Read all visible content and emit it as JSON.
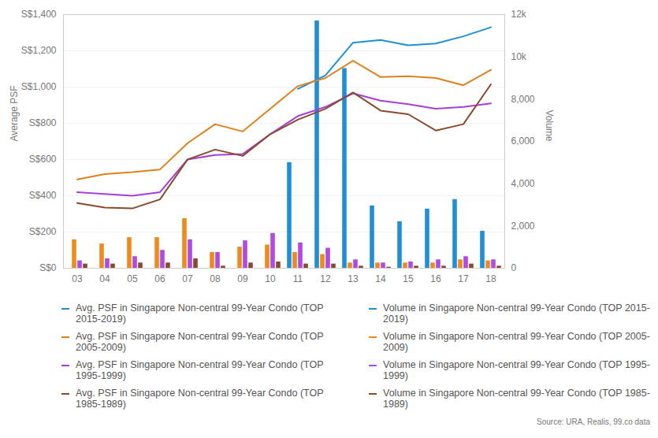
{
  "chart_data": {
    "type": "bar",
    "ylabel": "Average PSF",
    "y2label": "Volume",
    "caption": "Source: URA, Realis, 99.co data",
    "categories": [
      "03",
      "04",
      "05",
      "06",
      "07",
      "08",
      "09",
      "10",
      "11",
      "12",
      "13",
      "14",
      "15",
      "16",
      "17",
      "18"
    ],
    "ylim": [
      0,
      1400
    ],
    "yticks": [
      {
        "value": 0,
        "label": "S$0"
      },
      {
        "value": 200,
        "label": "S$200"
      },
      {
        "value": 400,
        "label": "S$400"
      },
      {
        "value": 600,
        "label": "S$600"
      },
      {
        "value": 800,
        "label": "S$800"
      },
      {
        "value": 1000,
        "label": "S$1,000"
      },
      {
        "value": 1200,
        "label": "S$1,200"
      },
      {
        "value": 1400,
        "label": "S$1,400"
      }
    ],
    "y2lim": [
      0,
      12000
    ],
    "y2ticks": [
      0,
      {
        "value": 2000,
        "label": "2,000"
      },
      {
        "value": 4000,
        "label": "4,000"
      },
      {
        "value": 6000,
        "label": "6,000"
      },
      {
        "value": 8000,
        "label": "8,000"
      },
      {
        "value": 10000,
        "label": "10k"
      },
      {
        "value": 12000,
        "label": "12k"
      }
    ],
    "grid": true,
    "series": [
      {
        "name": "Avg. PSF in Singapore Non-central 99-Year Condo (TOP 2015-2019)",
        "type": "line",
        "color": "#1f8fd6",
        "values": [
          null,
          null,
          null,
          null,
          null,
          null,
          null,
          null,
          990,
          1065,
          1245,
          1260,
          1230,
          1240,
          1280,
          1330
        ]
      },
      {
        "name": "Avg. PSF in Singapore Non-central 99-Year Condo (TOP 2005-2009)",
        "type": "line",
        "color": "#e0801c",
        "values": [
          490,
          520,
          530,
          545,
          690,
          795,
          755,
          880,
          1005,
          1050,
          1145,
          1055,
          1060,
          1050,
          1010,
          1095
        ]
      },
      {
        "name": "Avg. PSF in Singapore Non-central 99-Year Condo (TOP 1995-1999)",
        "type": "line",
        "color": "#a63fd8",
        "values": [
          420,
          410,
          400,
          420,
          600,
          625,
          630,
          740,
          840,
          890,
          965,
          925,
          905,
          880,
          890,
          910
        ]
      },
      {
        "name": "Avg. PSF in Singapore Non-central 99-Year Condo (TOP 1985-1989)",
        "type": "line",
        "color": "#8a4a2e",
        "values": [
          360,
          335,
          330,
          380,
          600,
          655,
          620,
          740,
          820,
          880,
          970,
          870,
          850,
          760,
          795,
          1015
        ]
      },
      {
        "name": "Volume in Singapore Non-central 99-Year Condo (TOP 2015-2019)",
        "type": "bar",
        "axis": "y2",
        "color": "#1f8fd6",
        "values": [
          null,
          null,
          null,
          null,
          null,
          null,
          null,
          null,
          5000,
          11700,
          9450,
          2950,
          2200,
          2800,
          3250,
          1750
        ]
      },
      {
        "name": "Volume in Singapore Non-central 99-Year Condo (TOP 2005-2009)",
        "type": "bar",
        "axis": "y2",
        "color": "#f08a1c",
        "values": [
          1350,
          1150,
          1450,
          1450,
          2350,
          750,
          1000,
          1100,
          750,
          650,
          250,
          250,
          250,
          250,
          400,
          350
        ]
      },
      {
        "name": "Volume in Singapore Non-central 99-Year Condo (TOP 1995-1999)",
        "type": "bar",
        "axis": "y2",
        "color": "#b04ae0",
        "values": [
          350,
          450,
          550,
          850,
          1350,
          750,
          1300,
          1650,
          1200,
          950,
          400,
          250,
          300,
          400,
          550,
          400
        ]
      },
      {
        "name": "Volume in Singapore Non-central 99-Year Condo (TOP 1985-1989)",
        "type": "bar",
        "axis": "y2",
        "color": "#8a4a2e",
        "values": [
          200,
          200,
          250,
          250,
          450,
          100,
          250,
          300,
          200,
          200,
          100,
          50,
          100,
          100,
          200,
          100
        ]
      }
    ]
  }
}
